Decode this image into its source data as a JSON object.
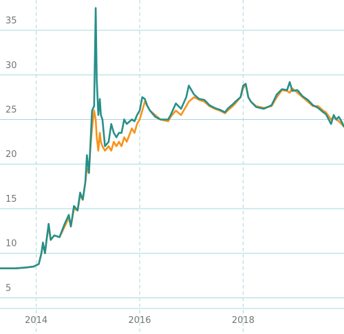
{
  "colors": {
    "series_a": "#f7931a",
    "series_b": "#268f8a",
    "grid": "#a6d8dc",
    "tick_text": "#757575"
  },
  "chart_data": {
    "type": "line",
    "title": "",
    "xlabel": "",
    "ylabel": "",
    "grid": true,
    "legend": "none",
    "xlim": [
      2013.3,
      2019.95
    ],
    "ylim": [
      3.8,
      38.4
    ],
    "x_ticks": [
      {
        "value": 2014,
        "label": "2014"
      },
      {
        "value": 2016,
        "label": "2016"
      },
      {
        "value": 2018,
        "label": "2018"
      }
    ],
    "y_ticks": [
      {
        "value": 5,
        "label": "5"
      },
      {
        "value": 10,
        "label": "10"
      },
      {
        "value": 15,
        "label": "15"
      },
      {
        "value": 20,
        "label": "20"
      },
      {
        "value": 25,
        "label": "25"
      },
      {
        "value": 30,
        "label": "30"
      },
      {
        "value": 35,
        "label": "35"
      }
    ],
    "series": [
      {
        "color": "#f7931a",
        "points": [
          [
            2013.3,
            8.3
          ],
          [
            2013.6,
            8.3
          ],
          [
            2013.8,
            8.4
          ],
          [
            2013.95,
            8.5
          ],
          [
            2014.05,
            8.8
          ],
          [
            2014.1,
            10.0
          ],
          [
            2014.13,
            11.0
          ],
          [
            2014.17,
            10.0
          ],
          [
            2014.2,
            11.5
          ],
          [
            2014.24,
            13.0
          ],
          [
            2014.28,
            11.5
          ],
          [
            2014.35,
            12.0
          ],
          [
            2014.45,
            11.8
          ],
          [
            2014.55,
            13.0
          ],
          [
            2014.63,
            14.0
          ],
          [
            2014.67,
            13.0
          ],
          [
            2014.73,
            15.0
          ],
          [
            2014.8,
            14.8
          ],
          [
            2014.85,
            16.5
          ],
          [
            2014.9,
            16.0
          ],
          [
            2014.95,
            18.0
          ],
          [
            2014.98,
            19.5
          ],
          [
            2015.02,
            19.0
          ],
          [
            2015.05,
            22.0
          ],
          [
            2015.08,
            24.0
          ],
          [
            2015.12,
            26.0
          ],
          [
            2015.15,
            25.0
          ],
          [
            2015.17,
            23.0
          ],
          [
            2015.2,
            21.5
          ],
          [
            2015.23,
            23.5
          ],
          [
            2015.25,
            22.5
          ],
          [
            2015.28,
            22.0
          ],
          [
            2015.33,
            21.5
          ],
          [
            2015.4,
            22.0
          ],
          [
            2015.45,
            21.5
          ],
          [
            2015.5,
            22.5
          ],
          [
            2015.55,
            22.0
          ],
          [
            2015.6,
            22.5
          ],
          [
            2015.65,
            22.0
          ],
          [
            2015.7,
            23.0
          ],
          [
            2015.75,
            22.5
          ],
          [
            2015.85,
            24.0
          ],
          [
            2015.9,
            23.5
          ],
          [
            2015.95,
            24.5
          ],
          [
            2016.0,
            25.0
          ],
          [
            2016.05,
            26.0
          ],
          [
            2016.1,
            27.0
          ],
          [
            2016.15,
            26.5
          ],
          [
            2016.2,
            26.0
          ],
          [
            2016.3,
            25.5
          ],
          [
            2016.4,
            25.0
          ],
          [
            2016.55,
            24.8
          ],
          [
            2016.6,
            25.3
          ],
          [
            2016.7,
            26.0
          ],
          [
            2016.8,
            25.5
          ],
          [
            2016.9,
            26.5
          ],
          [
            2016.95,
            27.0
          ],
          [
            2017.05,
            27.5
          ],
          [
            2017.15,
            27.2
          ],
          [
            2017.25,
            27.0
          ],
          [
            2017.35,
            26.5
          ],
          [
            2017.45,
            26.2
          ],
          [
            2017.55,
            26.0
          ],
          [
            2017.65,
            25.7
          ],
          [
            2017.7,
            26.0
          ],
          [
            2017.8,
            26.5
          ],
          [
            2017.85,
            26.8
          ],
          [
            2017.95,
            27.5
          ],
          [
            2018.0,
            28.5
          ],
          [
            2018.05,
            29.0
          ],
          [
            2018.1,
            27.5
          ],
          [
            2018.15,
            27.0
          ],
          [
            2018.25,
            26.5
          ],
          [
            2018.4,
            26.3
          ],
          [
            2018.55,
            26.5
          ],
          [
            2018.65,
            27.5
          ],
          [
            2018.75,
            28.3
          ],
          [
            2018.85,
            28.2
          ],
          [
            2018.9,
            28.0
          ],
          [
            2018.95,
            28.5
          ],
          [
            2019.05,
            28.0
          ],
          [
            2019.15,
            27.5
          ],
          [
            2019.25,
            27.0
          ],
          [
            2019.35,
            26.5
          ],
          [
            2019.45,
            26.5
          ],
          [
            2019.55,
            26.0
          ],
          [
            2019.6,
            25.8
          ],
          [
            2019.7,
            25.0
          ],
          [
            2019.75,
            25.3
          ],
          [
            2019.8,
            25.0
          ],
          [
            2019.85,
            24.8
          ],
          [
            2019.9,
            24.5
          ],
          [
            2019.95,
            24.2
          ]
        ]
      },
      {
        "color": "#268f8a",
        "points": [
          [
            2013.3,
            8.3
          ],
          [
            2013.6,
            8.3
          ],
          [
            2013.8,
            8.4
          ],
          [
            2013.95,
            8.5
          ],
          [
            2014.05,
            8.8
          ],
          [
            2014.1,
            10.0
          ],
          [
            2014.13,
            11.2
          ],
          [
            2014.17,
            10.0
          ],
          [
            2014.2,
            11.5
          ],
          [
            2014.24,
            13.3
          ],
          [
            2014.28,
            11.5
          ],
          [
            2014.35,
            12.0
          ],
          [
            2014.45,
            11.8
          ],
          [
            2014.55,
            13.3
          ],
          [
            2014.63,
            14.3
          ],
          [
            2014.67,
            13.0
          ],
          [
            2014.73,
            15.3
          ],
          [
            2014.8,
            14.8
          ],
          [
            2014.85,
            16.8
          ],
          [
            2014.9,
            16.0
          ],
          [
            2014.95,
            18.0
          ],
          [
            2014.98,
            21.0
          ],
          [
            2015.02,
            19.0
          ],
          [
            2015.05,
            22.5
          ],
          [
            2015.08,
            26.0
          ],
          [
            2015.12,
            26.5
          ],
          [
            2015.15,
            37.5
          ],
          [
            2015.17,
            29.5
          ],
          [
            2015.2,
            25.5
          ],
          [
            2015.23,
            27.3
          ],
          [
            2015.25,
            25.5
          ],
          [
            2015.28,
            25.0
          ],
          [
            2015.33,
            22.0
          ],
          [
            2015.4,
            22.5
          ],
          [
            2015.45,
            24.5
          ],
          [
            2015.5,
            23.5
          ],
          [
            2015.55,
            23.0
          ],
          [
            2015.6,
            23.5
          ],
          [
            2015.65,
            23.5
          ],
          [
            2015.7,
            25.0
          ],
          [
            2015.75,
            24.5
          ],
          [
            2015.85,
            25.0
          ],
          [
            2015.9,
            24.8
          ],
          [
            2015.95,
            25.5
          ],
          [
            2016.0,
            26.0
          ],
          [
            2016.05,
            27.5
          ],
          [
            2016.1,
            27.3
          ],
          [
            2016.15,
            26.5
          ],
          [
            2016.2,
            26.0
          ],
          [
            2016.3,
            25.3
          ],
          [
            2016.4,
            25.0
          ],
          [
            2016.55,
            25.0
          ],
          [
            2016.6,
            25.5
          ],
          [
            2016.7,
            26.8
          ],
          [
            2016.8,
            26.2
          ],
          [
            2016.9,
            27.5
          ],
          [
            2016.95,
            28.8
          ],
          [
            2017.05,
            27.8
          ],
          [
            2017.15,
            27.3
          ],
          [
            2017.25,
            27.2
          ],
          [
            2017.35,
            26.6
          ],
          [
            2017.45,
            26.3
          ],
          [
            2017.55,
            26.1
          ],
          [
            2017.65,
            25.8
          ],
          [
            2017.7,
            26.2
          ],
          [
            2017.8,
            26.7
          ],
          [
            2017.85,
            27.0
          ],
          [
            2017.95,
            27.5
          ],
          [
            2018.0,
            28.8
          ],
          [
            2018.05,
            29.0
          ],
          [
            2018.1,
            27.5
          ],
          [
            2018.15,
            27.0
          ],
          [
            2018.25,
            26.4
          ],
          [
            2018.4,
            26.2
          ],
          [
            2018.55,
            26.6
          ],
          [
            2018.65,
            27.8
          ],
          [
            2018.75,
            28.4
          ],
          [
            2018.85,
            28.3
          ],
          [
            2018.9,
            29.2
          ],
          [
            2018.95,
            28.2
          ],
          [
            2019.05,
            28.3
          ],
          [
            2019.15,
            27.6
          ],
          [
            2019.25,
            27.2
          ],
          [
            2019.35,
            26.6
          ],
          [
            2019.45,
            26.3
          ],
          [
            2019.55,
            25.8
          ],
          [
            2019.6,
            25.6
          ],
          [
            2019.7,
            24.5
          ],
          [
            2019.75,
            25.5
          ],
          [
            2019.8,
            25.0
          ],
          [
            2019.85,
            25.3
          ],
          [
            2019.9,
            24.8
          ],
          [
            2019.95,
            24.2
          ]
        ]
      }
    ]
  }
}
